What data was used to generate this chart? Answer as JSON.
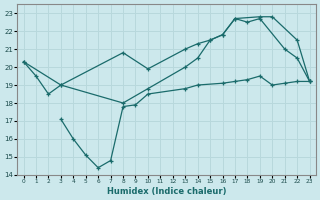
{
  "xlabel": "Humidex (Indice chaleur)",
  "bg_color": "#cce8ec",
  "line_color": "#1a6b6b",
  "grid_color": "#b8d8dc",
  "xlim": [
    -0.5,
    23.5
  ],
  "ylim": [
    14,
    23.5
  ],
  "yticks": [
    14,
    15,
    16,
    17,
    18,
    19,
    20,
    21,
    22,
    23
  ],
  "xticks": [
    0,
    1,
    2,
    3,
    4,
    5,
    6,
    7,
    8,
    9,
    10,
    11,
    12,
    13,
    14,
    15,
    16,
    17,
    18,
    19,
    20,
    21,
    22,
    23
  ],
  "line1_x": [
    0,
    1,
    2,
    3,
    8,
    10,
    13,
    14,
    15,
    16,
    17,
    19,
    20,
    22,
    23
  ],
  "line1_y": [
    20.3,
    19.5,
    18.5,
    19.0,
    18.0,
    18.8,
    20.0,
    20.5,
    21.5,
    21.8,
    22.7,
    22.8,
    22.8,
    21.5,
    19.2
  ],
  "line2_x": [
    0,
    3,
    8,
    10,
    13,
    14,
    15,
    16,
    17,
    18,
    19,
    21,
    22,
    23
  ],
  "line2_y": [
    20.3,
    19.0,
    20.8,
    19.9,
    21.0,
    21.3,
    21.5,
    21.8,
    22.7,
    22.5,
    22.7,
    21.0,
    20.5,
    19.2
  ],
  "line3_x": [
    3,
    4,
    5,
    6,
    7,
    8,
    9,
    10,
    13,
    14,
    16,
    17,
    18,
    19,
    20,
    21,
    22,
    23
  ],
  "line3_y": [
    17.1,
    16.0,
    15.1,
    14.4,
    14.8,
    17.8,
    17.9,
    18.5,
    18.8,
    19.0,
    19.1,
    19.2,
    19.3,
    19.5,
    19.0,
    19.1,
    19.2,
    19.2
  ]
}
